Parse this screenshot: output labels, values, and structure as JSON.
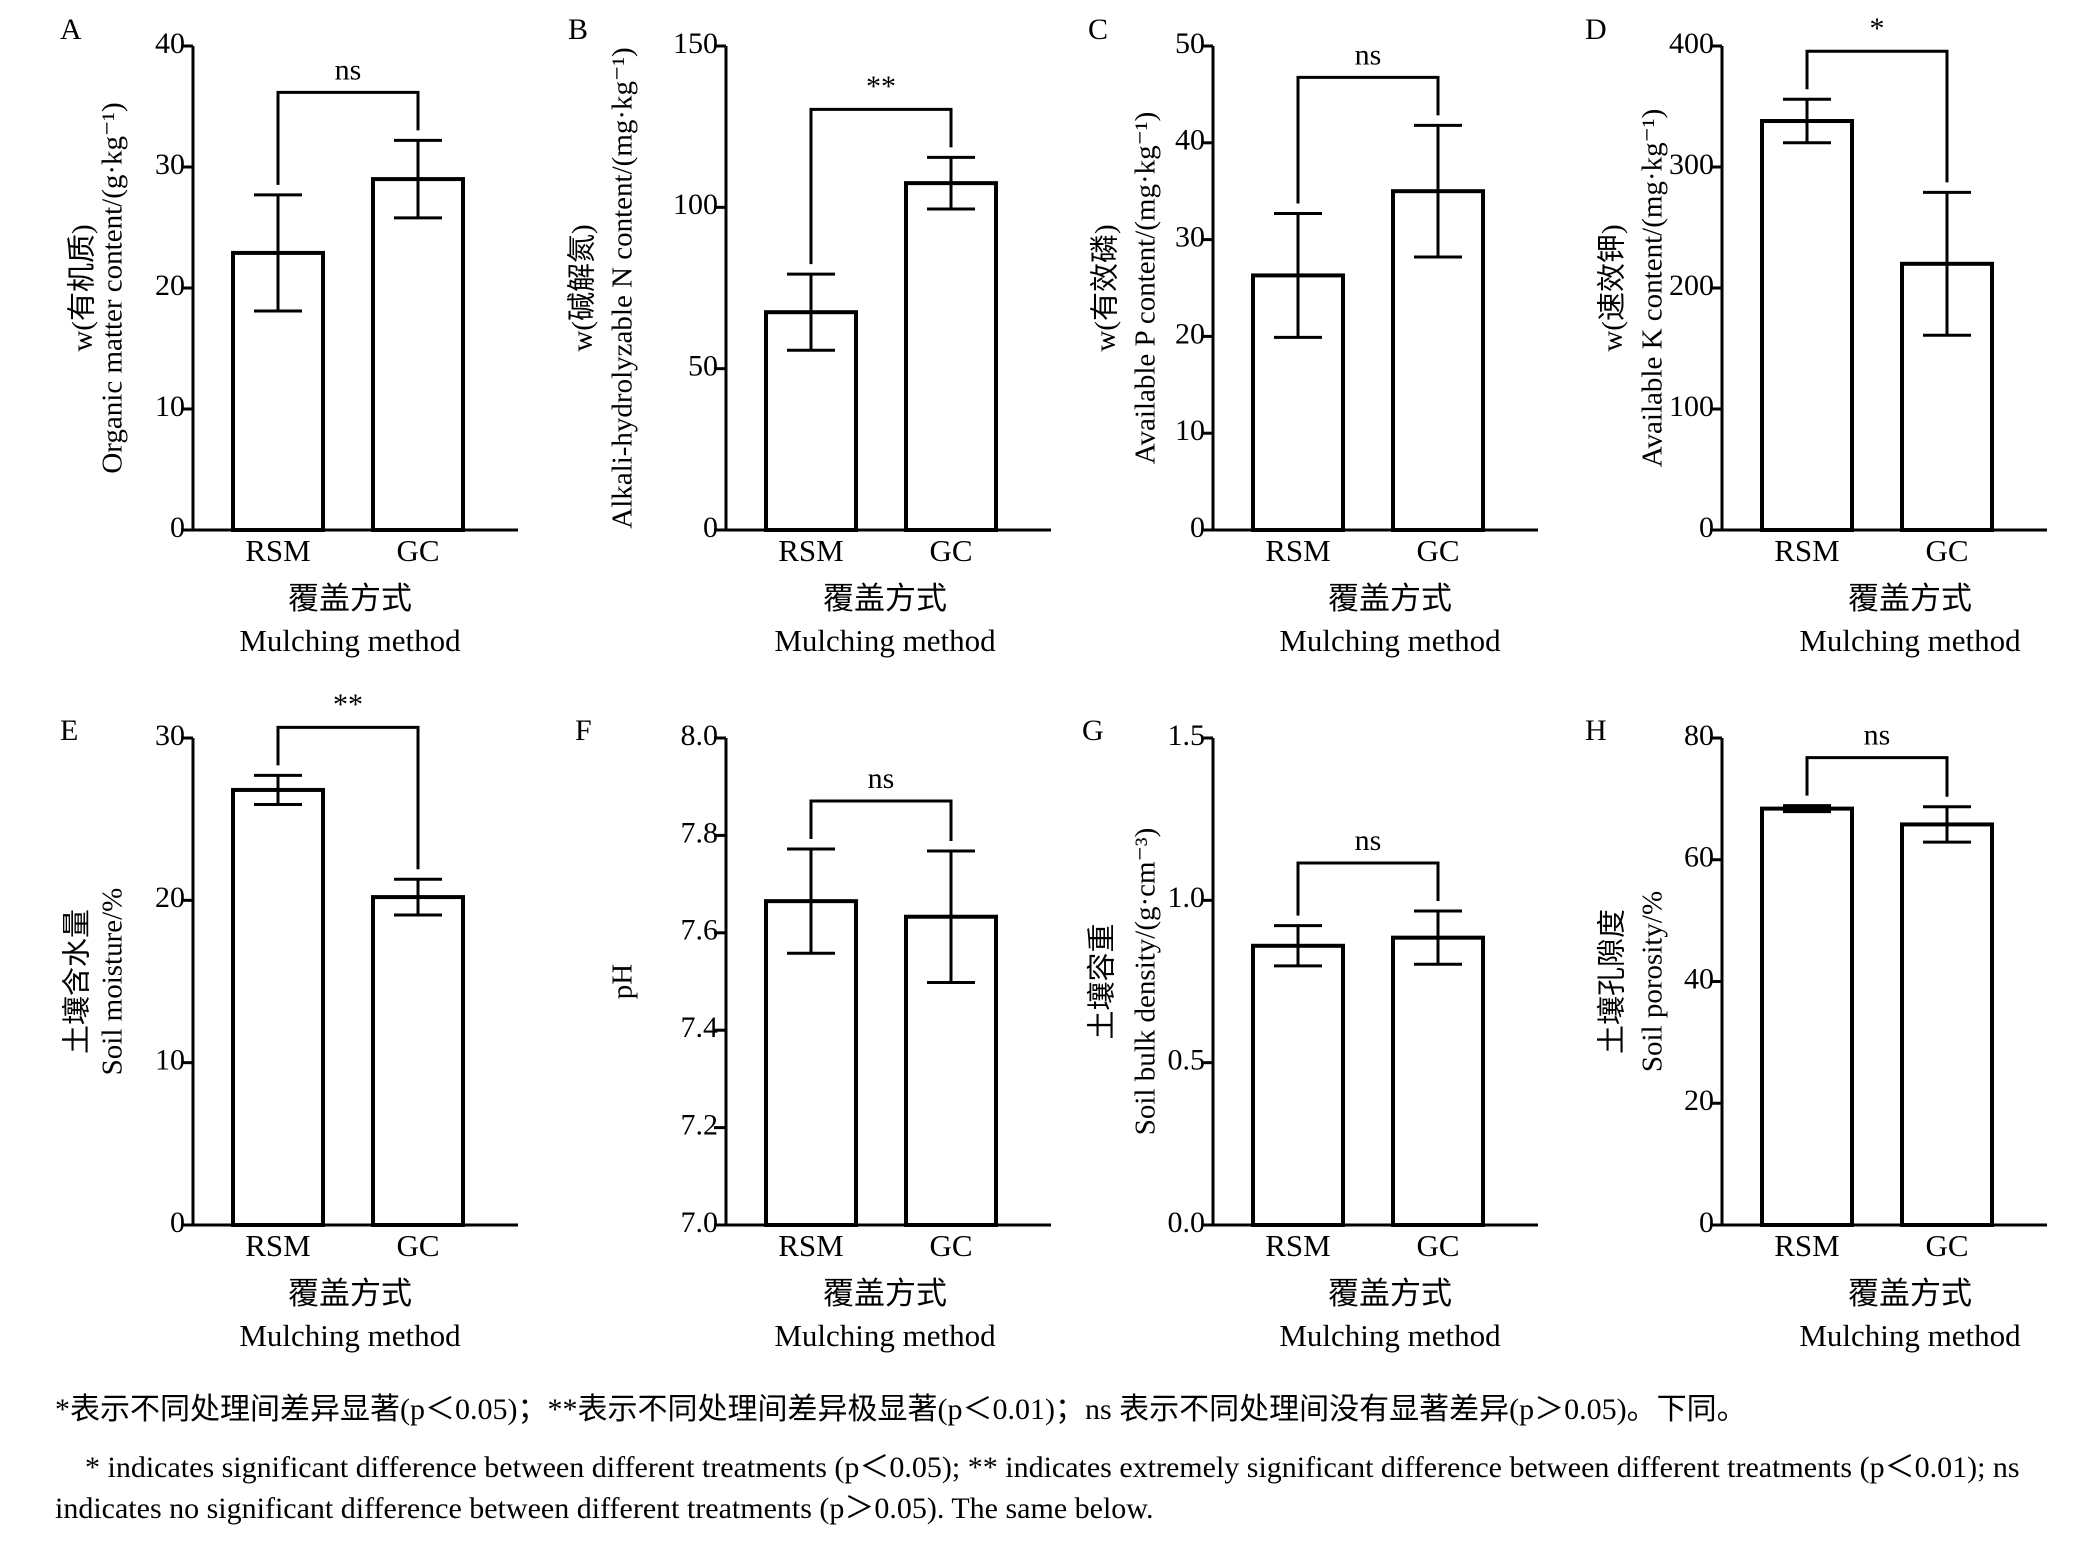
{
  "chart_data": [
    {
      "panel": "A",
      "type": "bar",
      "categories": [
        "RSM",
        "GC"
      ],
      "values": [
        22.9,
        29.0
      ],
      "errors": [
        4.8,
        3.2
      ],
      "significance": "ns",
      "ylabel_line1": "w(有机质)",
      "ylabel_line2": "Organic matter content/(g·kg⁻¹)",
      "ylim": [
        0,
        40
      ],
      "yticks": [
        "0",
        "10",
        "20",
        "30",
        "40"
      ],
      "xlabel_cn": "覆盖方式",
      "xlabel_en": "Mulching method"
    },
    {
      "panel": "B",
      "type": "bar",
      "categories": [
        "RSM",
        "GC"
      ],
      "values": [
        67.5,
        107.5
      ],
      "errors": [
        11.8,
        8.0
      ],
      "significance": "**",
      "ylabel_line1": "w(碱解氮)",
      "ylabel_line2": "Alkali-hydrolyzable N content/(mg·kg⁻¹)",
      "ylim": [
        0,
        150
      ],
      "yticks": [
        "0",
        "50",
        "100",
        "150"
      ],
      "xlabel_cn": "覆盖方式",
      "xlabel_en": "Mulching method"
    },
    {
      "panel": "C",
      "type": "bar",
      "categories": [
        "RSM",
        "GC"
      ],
      "values": [
        26.3,
        35.0
      ],
      "errors": [
        6.4,
        6.8
      ],
      "significance": "ns",
      "ylabel_line1": "w(有效磷)",
      "ylabel_line2": "Available P content/(mg·kg⁻¹)",
      "ylim": [
        0,
        50
      ],
      "yticks": [
        "0",
        "10",
        "20",
        "30",
        "40",
        "50"
      ],
      "xlabel_cn": "覆盖方式",
      "xlabel_en": "Mulching method"
    },
    {
      "panel": "D",
      "type": "bar",
      "categories": [
        "RSM",
        "GC"
      ],
      "values": [
        338,
        220
      ],
      "errors": [
        18,
        59
      ],
      "significance": "*",
      "ylabel_line1": "w(速效钾)",
      "ylabel_line2": "Available K content/(mg·kg⁻¹)",
      "ylim": [
        0,
        400
      ],
      "yticks": [
        "0",
        "100",
        "200",
        "300",
        "400"
      ],
      "xlabel_cn": "覆盖方式",
      "xlabel_en": "Mulching method"
    },
    {
      "panel": "E",
      "type": "bar",
      "categories": [
        "RSM",
        "GC"
      ],
      "values": [
        26.8,
        20.2
      ],
      "errors": [
        0.9,
        1.1
      ],
      "significance": "**",
      "ylabel_line1": "土壤含水量",
      "ylabel_line2": "Soil moisture/%",
      "ylim": [
        0,
        30
      ],
      "yticks": [
        "0",
        "10",
        "20",
        "30"
      ],
      "xlabel_cn": "覆盖方式",
      "xlabel_en": "Mulching method"
    },
    {
      "panel": "F",
      "type": "bar",
      "categories": [
        "RSM",
        "GC"
      ],
      "values": [
        7.665,
        7.633
      ],
      "errors": [
        0.107,
        0.135
      ],
      "significance": "ns",
      "ylabel_line1": "",
      "ylabel_line2": "pH",
      "ylim": [
        7.0,
        8.0
      ],
      "yticks": [
        "7.0",
        "7.2",
        "7.4",
        "7.6",
        "7.8",
        "8.0"
      ],
      "xlabel_cn": "覆盖方式",
      "xlabel_en": "Mulching method"
    },
    {
      "panel": "G",
      "type": "bar",
      "categories": [
        "RSM",
        "GC"
      ],
      "values": [
        0.86,
        0.885
      ],
      "errors": [
        0.062,
        0.082
      ],
      "significance": "ns",
      "ylabel_line1": "土壤容重",
      "ylabel_line2": "Soil bulk density/(g·cm⁻³)",
      "ylim": [
        0,
        1.5
      ],
      "yticks": [
        "0.0",
        "0.5",
        "1.0",
        "1.5"
      ],
      "xlabel_cn": "覆盖方式",
      "xlabel_en": "Mulching method"
    },
    {
      "panel": "H",
      "type": "bar",
      "categories": [
        "RSM",
        "GC"
      ],
      "values": [
        68.4,
        65.8
      ],
      "errors": [
        0.5,
        2.9
      ],
      "significance": "ns",
      "ylabel_line1": "土壤孔隙度",
      "ylabel_line2": "Soil porosity/%",
      "ylim": [
        0,
        80
      ],
      "yticks": [
        "0",
        "20",
        "40",
        "60",
        "80"
      ],
      "xlabel_cn": "覆盖方式",
      "xlabel_en": "Mulching method"
    }
  ],
  "caption_cn": "*表示不同处理间差异显著(p＜0.05)；**表示不同处理间差异极显著(p＜0.01)；ns 表示不同处理间没有显著差异(p＞0.05)。下同。",
  "caption_en": "* indicates significant difference between different treatments (p＜0.05); ** indicates extremely significant difference between different treatments (p＜0.01); ns indicates no significant difference between different treatments (p＞0.05). The same below."
}
